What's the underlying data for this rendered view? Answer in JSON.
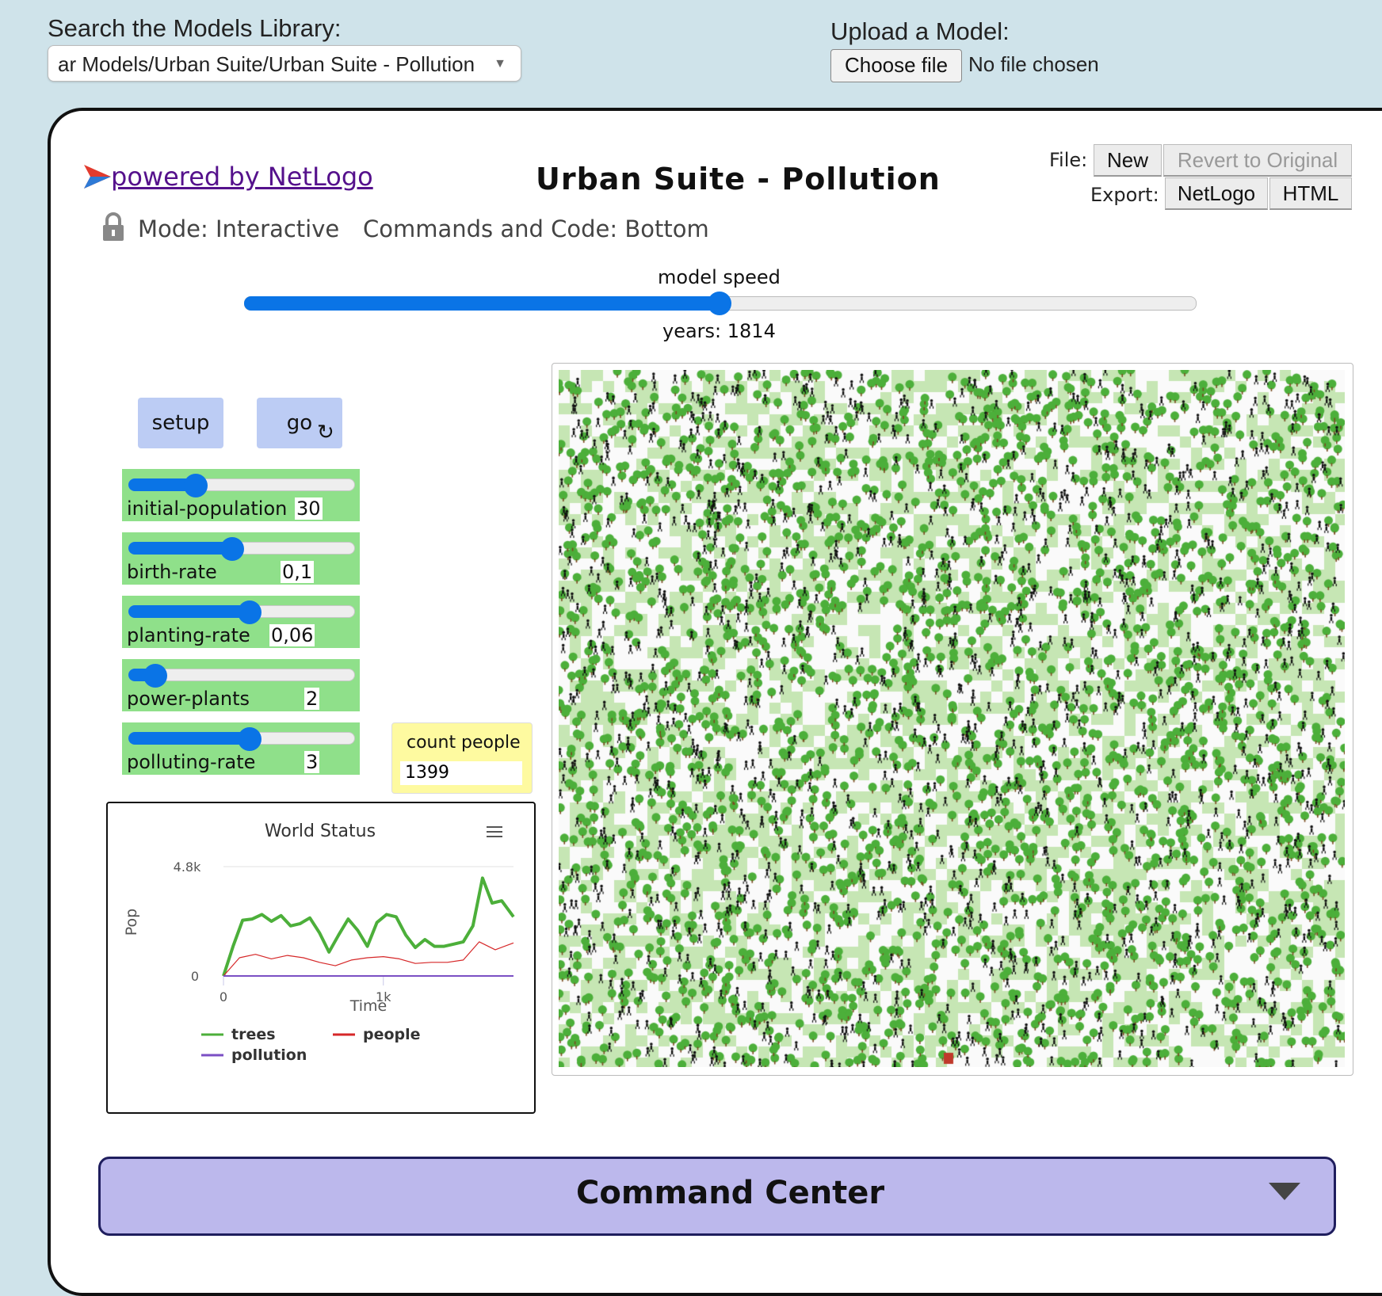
{
  "header": {
    "search_label": "Search the Models Library:",
    "model_select_value": "ar Models/Urban Suite/Urban Suite - Pollution",
    "upload_label": "Upload a Model:",
    "choose_file_label": "Choose file",
    "no_file_text": "No file chosen"
  },
  "toolbar": {
    "powered_by": "powered by NetLogo",
    "title": "Urban Suite - Pollution",
    "file_label": "File:",
    "new_label": "New",
    "revert_label": "Revert to Original",
    "export_label": "Export:",
    "export_netlogo": "NetLogo",
    "export_html": "HTML",
    "mode_text": "Mode: Interactive",
    "commands_text": "Commands and Code: Bottom"
  },
  "speed": {
    "label": "model speed",
    "value": 0.5,
    "ticks_label": "years: 1814"
  },
  "buttons": {
    "setup": "setup",
    "go": "go"
  },
  "sliders": [
    {
      "name": "initial-population",
      "value": "30",
      "fraction": 0.3
    },
    {
      "name": "birth-rate",
      "value": "0,1",
      "fraction": 0.46
    },
    {
      "name": "planting-rate",
      "value": "0,06",
      "fraction": 0.54
    },
    {
      "name": "power-plants",
      "value": "2",
      "fraction": 0.12
    },
    {
      "name": "polluting-rate",
      "value": "3",
      "fraction": 0.54
    }
  ],
  "monitor": {
    "label": "count people",
    "value": "1399"
  },
  "command_center": {
    "title": "Command Center"
  },
  "colors": {
    "trees": "#4caf3a",
    "people": "#d62728",
    "pollution": "#7b4fc4",
    "patch_light": "#c6e6b4"
  },
  "chart_data": {
    "type": "line",
    "title": "World Status",
    "xlabel": "Time",
    "ylabel": "Pop",
    "ylim": [
      0,
      4800
    ],
    "xlim": [
      0,
      1814
    ],
    "y_tick_labels": [
      "0",
      "4.8k"
    ],
    "x_tick_labels": [
      "0",
      "1k"
    ],
    "x_ticks": [
      0,
      1000
    ],
    "y_ticks": [
      0,
      4800
    ],
    "legend": "bottom",
    "series": [
      {
        "name": "trees",
        "color": "#4caf3a",
        "x": [
          0,
          60,
          120,
          180,
          240,
          300,
          360,
          420,
          480,
          540,
          600,
          660,
          720,
          780,
          840,
          900,
          960,
          1020,
          1080,
          1140,
          1200,
          1260,
          1320,
          1380,
          1440,
          1500,
          1560,
          1620,
          1680,
          1740,
          1814
        ],
        "y": [
          0,
          1300,
          2450,
          2500,
          2700,
          2400,
          2650,
          2200,
          2300,
          2550,
          1900,
          1050,
          1800,
          2500,
          2000,
          1300,
          2350,
          2700,
          2600,
          1800,
          1250,
          1600,
          1300,
          1300,
          1400,
          1500,
          2200,
          4300,
          3200,
          3300,
          2600
        ]
      },
      {
        "name": "people",
        "color": "#d62728",
        "x": [
          0,
          100,
          200,
          300,
          400,
          500,
          600,
          700,
          800,
          900,
          1000,
          1100,
          1200,
          1300,
          1400,
          1500,
          1600,
          1700,
          1814
        ],
        "y": [
          0,
          800,
          950,
          750,
          900,
          800,
          600,
          450,
          700,
          800,
          850,
          750,
          550,
          600,
          600,
          700,
          1500,
          1150,
          1450
        ]
      },
      {
        "name": "pollution",
        "color": "#7b4fc4",
        "x": [
          0,
          1814
        ],
        "y": [
          0,
          0
        ]
      }
    ]
  }
}
